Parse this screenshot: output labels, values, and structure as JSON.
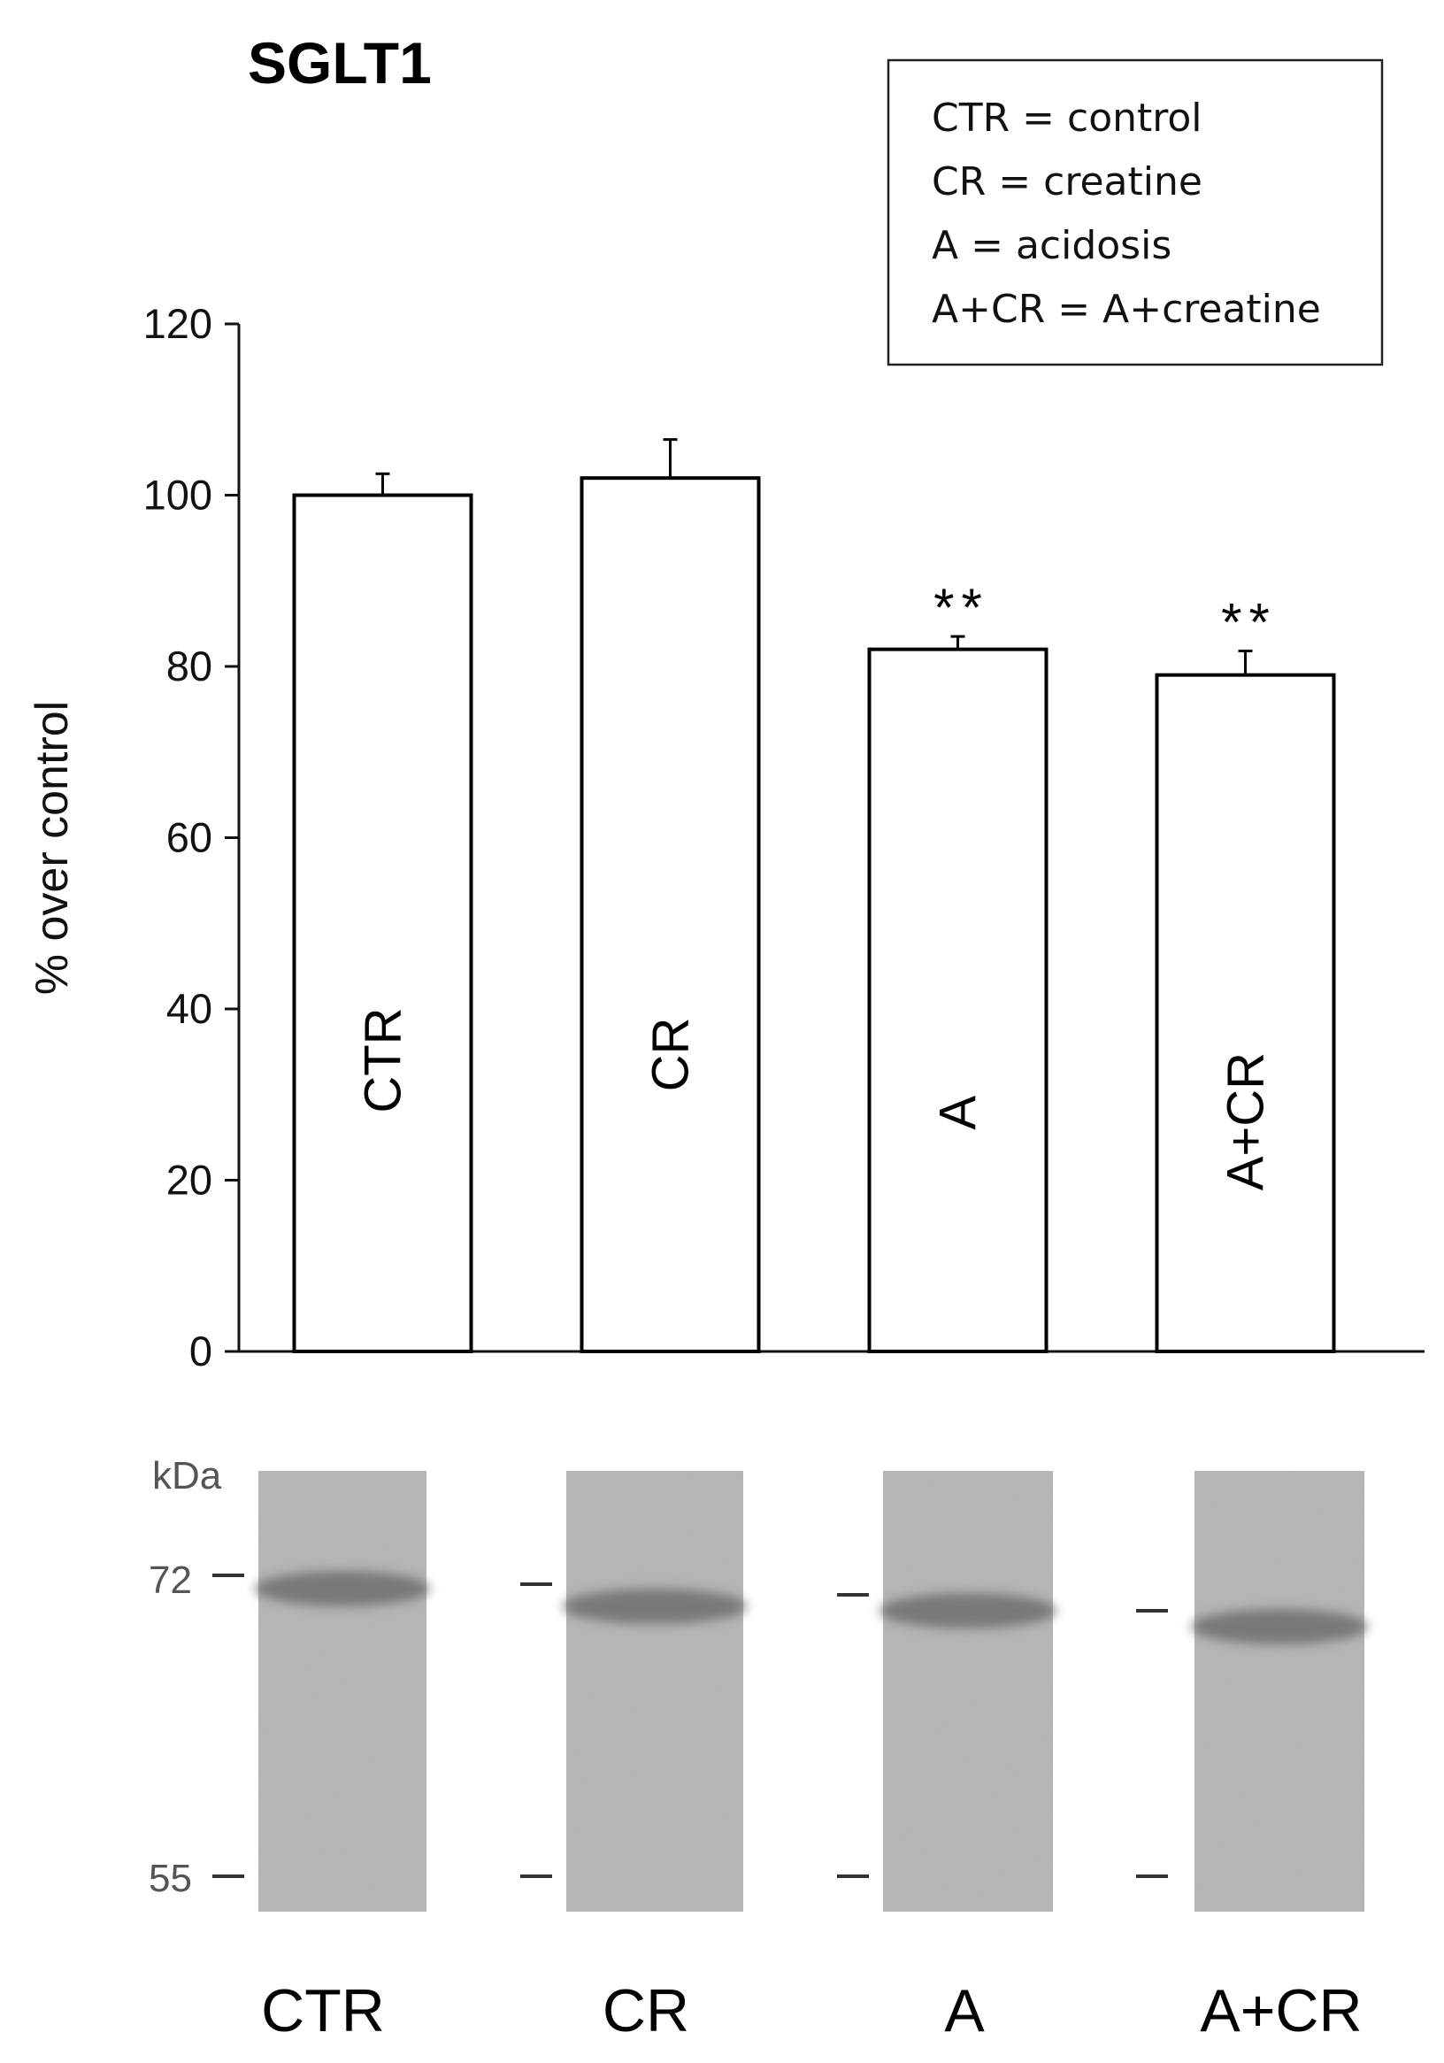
{
  "chart_data": {
    "type": "bar",
    "title": "SGLT1",
    "ylabel": "% over control",
    "xlabel": "",
    "ylim": [
      0,
      120
    ],
    "yticks": [
      0,
      20,
      40,
      60,
      80,
      100,
      120
    ],
    "grid": false,
    "categories": [
      "CTR",
      "CR",
      "A",
      "A+CR"
    ],
    "values": [
      100,
      102,
      82,
      79
    ],
    "errors": [
      2.5,
      4.5,
      1.5,
      2.8
    ],
    "significance": [
      "",
      "",
      "**",
      "**"
    ],
    "legend": {
      "placement": "top-right",
      "entries": [
        "CTR = control",
        "CR = creatine",
        "A = acidosis",
        "A+CR = A+creatine"
      ]
    }
  },
  "western_blot": {
    "unit_label": "kDa",
    "markers": [
      "72",
      "55"
    ],
    "lanes": [
      "CTR",
      "CR",
      "A",
      "A+CR"
    ],
    "colors": {
      "membrane": "#b9b9b9",
      "band": "#6e6e6e"
    }
  }
}
